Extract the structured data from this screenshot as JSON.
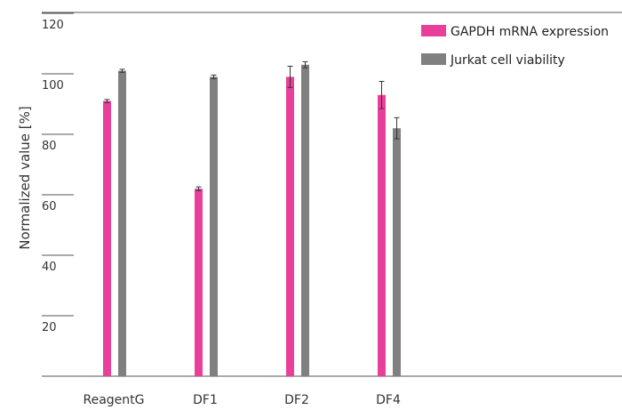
{
  "chart_data": {
    "type": "bar",
    "title": "",
    "xlabel": "",
    "ylabel": "Normalized value [%]",
    "ylim": [
      0,
      120
    ],
    "yticks": [
      20,
      40,
      60,
      80,
      100,
      120
    ],
    "categories": [
      "ReagentG",
      "DF1",
      "DF2",
      "DF4"
    ],
    "series": [
      {
        "name": "GAPDH mRNA expression",
        "color": "#e8409a",
        "values": [
          91,
          62,
          99,
          93
        ],
        "errors": [
          0.5,
          0.6,
          3.5,
          4.5
        ]
      },
      {
        "name": "Jurkat cell viability",
        "color": "#808080",
        "values": [
          101,
          99,
          103,
          82
        ],
        "errors": [
          0.5,
          0.6,
          1.0,
          3.5
        ]
      }
    ],
    "legend": {
      "position": "top-right"
    },
    "grid": false
  }
}
